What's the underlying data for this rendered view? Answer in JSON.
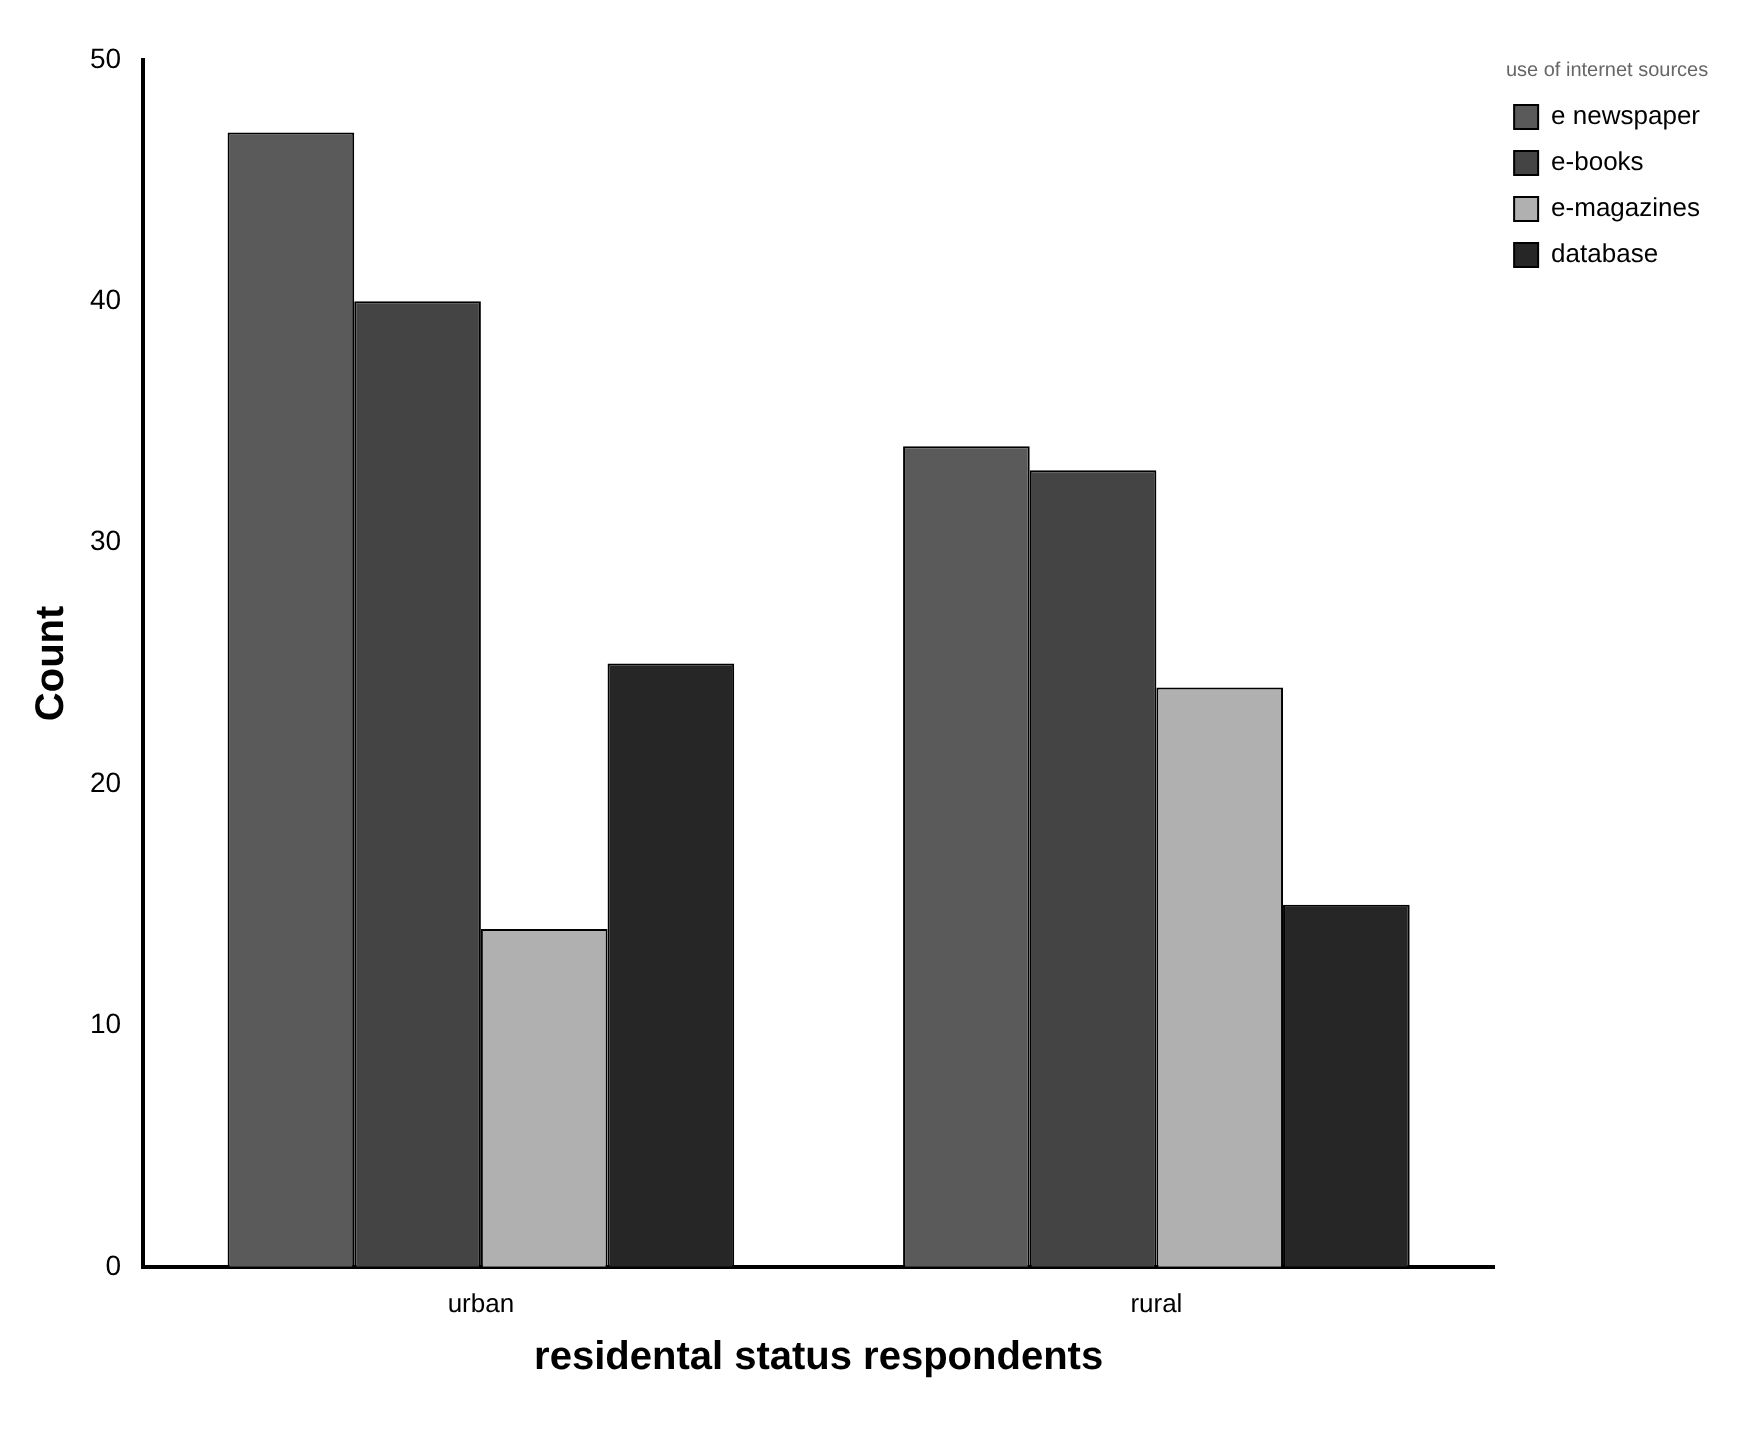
{
  "chart_data": {
    "type": "bar",
    "xlabel": "residental status respondents",
    "ylabel": "Count",
    "legend_title": "use of internet sources",
    "categories": [
      "urban",
      "rural"
    ],
    "series": [
      {
        "name": "e newspaper",
        "color": "#5a5a5a",
        "values": [
          47,
          34
        ]
      },
      {
        "name": "e-books",
        "color": "#444444",
        "values": [
          40,
          33
        ]
      },
      {
        "name": "e-magazines",
        "color": "#b0b0b0",
        "values": [
          14,
          24
        ]
      },
      {
        "name": "database",
        "color": "#262626",
        "values": [
          25,
          15
        ]
      }
    ],
    "ylim": [
      0,
      50
    ],
    "yticks": [
      0,
      10,
      20,
      30,
      40,
      50
    ],
    "grid": false,
    "legend": "top right"
  }
}
